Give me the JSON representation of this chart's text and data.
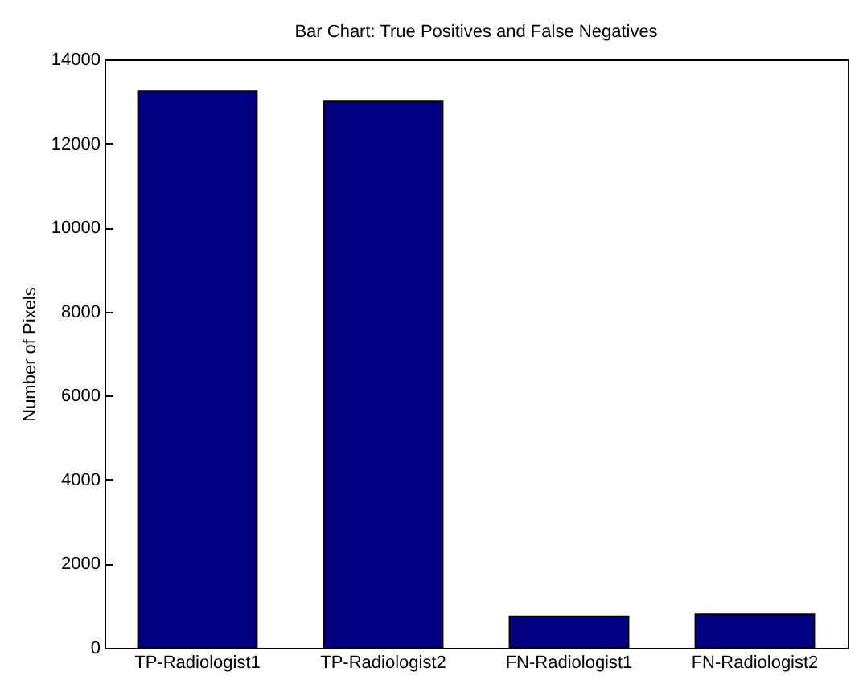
{
  "chart_data": {
    "type": "bar",
    "title": "Bar Chart: True Positives and False Negatives",
    "ylabel": "Number of Pixels",
    "categories": [
      "TP-Radiologist1",
      "TP-Radiologist2",
      "FN-Radiologist1",
      "FN-Radiologist2"
    ],
    "values": [
      13250,
      13000,
      750,
      800
    ],
    "color": "#000080",
    "ylim": [
      0,
      14000
    ],
    "yticks": [
      0,
      2000,
      4000,
      6000,
      8000,
      10000,
      12000,
      14000
    ],
    "grid": false
  }
}
